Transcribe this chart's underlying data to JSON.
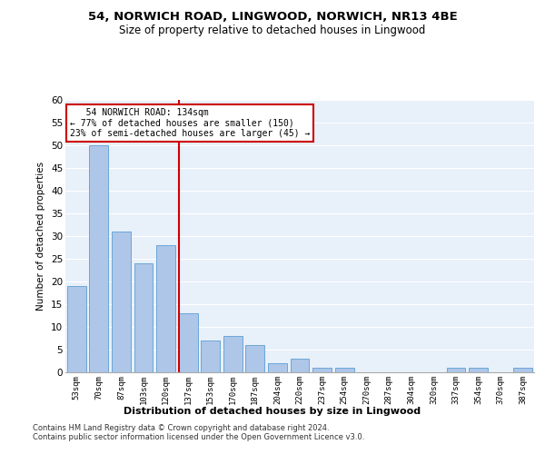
{
  "title": "54, NORWICH ROAD, LINGWOOD, NORWICH, NR13 4BE",
  "subtitle": "Size of property relative to detached houses in Lingwood",
  "xlabel_bottom": "Distribution of detached houses by size in Lingwood",
  "ylabel": "Number of detached properties",
  "categories": [
    "53sqm",
    "70sqm",
    "87sqm",
    "103sqm",
    "120sqm",
    "137sqm",
    "153sqm",
    "170sqm",
    "187sqm",
    "204sqm",
    "220sqm",
    "237sqm",
    "254sqm",
    "270sqm",
    "287sqm",
    "304sqm",
    "320sqm",
    "337sqm",
    "354sqm",
    "370sqm",
    "387sqm"
  ],
  "values": [
    19,
    50,
    31,
    24,
    28,
    13,
    7,
    8,
    6,
    2,
    3,
    1,
    1,
    0,
    0,
    0,
    0,
    1,
    1,
    0,
    1
  ],
  "bar_color": "#aec6e8",
  "bar_edge_color": "#5a9fd4",
  "highlight_index": 5,
  "highlight_color": "#cc0000",
  "ylim": [
    0,
    60
  ],
  "yticks": [
    0,
    5,
    10,
    15,
    20,
    25,
    30,
    35,
    40,
    45,
    50,
    55,
    60
  ],
  "annotation_line1": "   54 NORWICH ROAD: 134sqm",
  "annotation_line2": "← 77% of detached houses are smaller (150)",
  "annotation_line3": "23% of semi-detached houses are larger (45) →",
  "bg_color": "#e8f0fa",
  "grid_color": "#ffffff",
  "footer_line1": "Contains HM Land Registry data © Crown copyright and database right 2024.",
  "footer_line2": "Contains public sector information licensed under the Open Government Licence v3.0."
}
